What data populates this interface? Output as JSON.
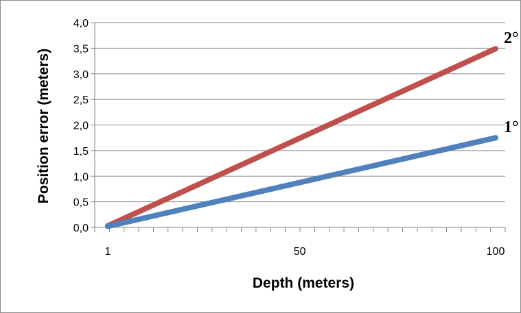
{
  "chart_data": {
    "type": "line",
    "xlabel": "Depth (meters)",
    "ylabel": "Position error (meters)",
    "xlim": [
      1,
      100
    ],
    "ylim": [
      0,
      4
    ],
    "x_tick_labels": [
      {
        "value": 1,
        "label": "1"
      },
      {
        "value": 50,
        "label": "50"
      },
      {
        "value": 100,
        "label": "100"
      }
    ],
    "y_ticks": [
      0,
      0.5,
      1,
      1.5,
      2,
      2.5,
      3,
      3.5,
      4
    ],
    "y_tick_labels": [
      "0,0",
      "0,5",
      "1,0",
      "1,5",
      "2,0",
      "2,5",
      "3,0",
      "3,5",
      "4,0"
    ],
    "grid": true,
    "series": [
      {
        "name": "2°",
        "color": "#c0504d",
        "x": [
          1,
          100
        ],
        "y": [
          0.03,
          3.49
        ]
      },
      {
        "name": "1°",
        "color": "#4f81bd",
        "x": [
          1,
          100
        ],
        "y": [
          0.02,
          1.75
        ]
      }
    ]
  }
}
